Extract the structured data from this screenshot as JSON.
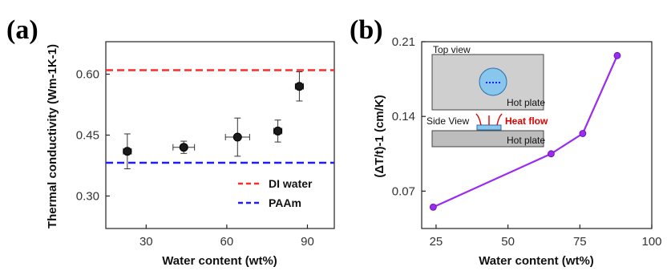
{
  "chart_data": [
    {
      "panel": "(a)",
      "type": "scatter",
      "xlabel": "Water content (wt%)",
      "ylabel": "Thermal conductivity (Wm-1K-1)",
      "xlim": [
        15,
        100
      ],
      "ylim": [
        0.22,
        0.68
      ],
      "xticks": [
        30,
        60,
        90
      ],
      "yticks": [
        0.3,
        0.45,
        0.6
      ],
      "xtick_labels": [
        "30",
        "60",
        "90"
      ],
      "ytick_labels": [
        "0.30",
        "0.45",
        "0.60"
      ],
      "points": [
        {
          "x": 23,
          "y": 0.41,
          "xerr": 1.5,
          "yerr": 0.043
        },
        {
          "x": 44,
          "y": 0.42,
          "xerr": 4,
          "yerr": 0.015
        },
        {
          "x": 64,
          "y": 0.445,
          "xerr": 4.5,
          "yerr": 0.047
        },
        {
          "x": 79,
          "y": 0.46,
          "xerr": 1.5,
          "yerr": 0.027
        },
        {
          "x": 87,
          "y": 0.57,
          "xerr": 1.5,
          "yerr": 0.036
        }
      ],
      "reference_lines": [
        {
          "name": "DI water",
          "y": 0.61,
          "color": "#ff2a2a"
        },
        {
          "name": "PAAm",
          "y": 0.382,
          "color": "#1c1cff"
        }
      ],
      "legend": "bottom-right",
      "grid": false
    },
    {
      "panel": "(b)",
      "type": "line",
      "xlabel": "Water content (wt%)",
      "ylabel": "(ΔT/t)-1 (cm/K)",
      "xlim": [
        20,
        100
      ],
      "ylim": [
        0.035,
        0.21
      ],
      "xticks": [
        25,
        50,
        75,
        100
      ],
      "yticks": [
        0.07,
        0.14,
        0.21
      ],
      "xtick_labels": [
        "25",
        "50",
        "75",
        "100"
      ],
      "ytick_labels": [
        "0.07",
        "0.14",
        "0.21"
      ],
      "series": [
        {
          "x": [
            24,
            65,
            76,
            88
          ],
          "y": [
            0.055,
            0.105,
            0.124,
            0.197
          ],
          "color": "#9b2bf0"
        }
      ],
      "inset": {
        "top_label": "Top view",
        "top_plate_label": "Hot plate",
        "side_label": "Side View",
        "heat_label": "Heat flow",
        "bottom_plate_label": "Hot plate"
      },
      "grid": false
    }
  ],
  "panel_labels": {
    "a": "(a)",
    "b": "(b)"
  }
}
